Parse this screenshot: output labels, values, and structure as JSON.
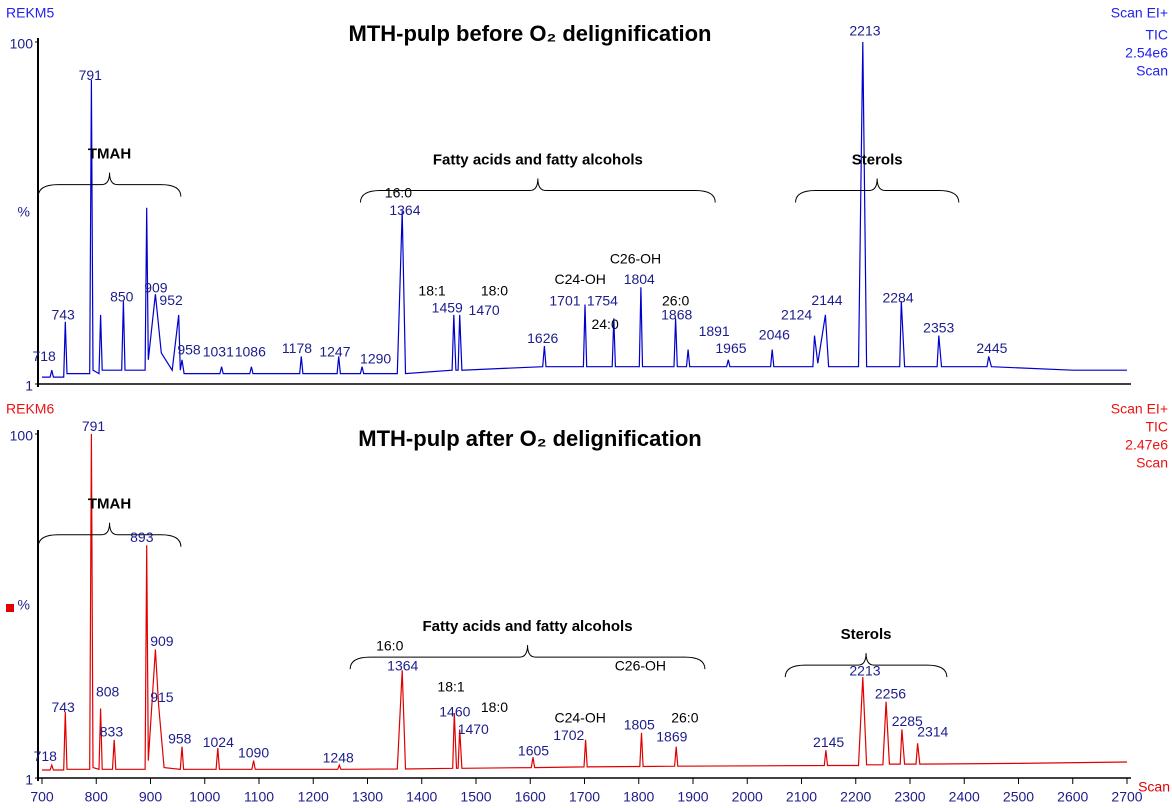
{
  "chart_data": [
    {
      "type": "line",
      "title": "MTH-pulp before O₂ delignification",
      "run_label": "REKM5",
      "info": [
        "Scan EI+",
        "TIC",
        "2.54e6",
        "Scan"
      ],
      "color": "#0000cc",
      "xlim": [
        700,
        2700
      ],
      "ylim": [
        1,
        100
      ],
      "yticks": [
        1,
        100
      ],
      "ylabel": "%",
      "x": [
        700,
        715,
        718,
        721,
        740,
        743,
        746,
        788,
        791,
        794,
        805,
        808,
        811,
        847,
        850,
        853,
        890,
        893,
        896,
        909,
        920,
        940,
        952,
        955,
        958,
        962,
        1028,
        1031,
        1034,
        1083,
        1086,
        1089,
        1175,
        1178,
        1181,
        1244,
        1247,
        1250,
        1287,
        1290,
        1293,
        1355,
        1364,
        1370,
        1456,
        1459,
        1463,
        1467,
        1470,
        1474,
        1623,
        1626,
        1629,
        1698,
        1701,
        1704,
        1751,
        1754,
        1757,
        1801,
        1804,
        1807,
        1865,
        1868,
        1871,
        1888,
        1891,
        1894,
        1962,
        1965,
        1968,
        2043,
        2046,
        2049,
        2121,
        2124,
        2130,
        2144,
        2150,
        2205,
        2213,
        2220,
        2281,
        2284,
        2290,
        2350,
        2353,
        2358,
        2442,
        2445,
        2450,
        2600,
        2700
      ],
      "values": [
        3,
        3,
        5,
        3,
        3,
        19,
        4,
        4,
        89,
        5,
        4,
        21,
        5,
        5,
        25,
        5,
        5,
        52,
        8,
        27,
        10,
        5,
        21,
        5,
        8,
        4,
        4,
        6,
        4,
        4,
        6,
        4,
        4,
        9,
        4,
        4,
        9,
        4,
        4,
        6,
        4,
        4,
        51,
        4,
        5,
        21,
        5,
        5,
        21,
        5,
        6,
        12,
        6,
        6,
        24,
        6,
        6,
        20,
        6,
        6,
        29,
        6,
        6,
        20,
        6,
        6,
        11,
        6,
        6,
        8,
        6,
        6,
        11,
        6,
        6,
        15,
        7,
        21,
        6,
        6,
        100,
        6,
        6,
        25,
        6,
        6,
        15,
        6,
        6,
        9,
        6,
        5,
        5
      ],
      "peak_labels": [
        {
          "text": "718",
          "x": 704,
          "y": 8.8
        },
        {
          "text": "743",
          "x": 739,
          "y": 20.7
        },
        {
          "text": "791",
          "x": 789,
          "y": 90
        },
        {
          "text": "850",
          "x": 847,
          "y": 26
        },
        {
          "text": "909",
          "x": 910,
          "y": 28.5
        },
        {
          "text": "952",
          "x": 938,
          "y": 25
        },
        {
          "text": "958",
          "x": 971,
          "y": 10.6
        },
        {
          "text": "1031",
          "x": 1025,
          "y": 10
        },
        {
          "text": "1086",
          "x": 1084,
          "y": 10
        },
        {
          "text": "1178",
          "x": 1170,
          "y": 11
        },
        {
          "text": "1247",
          "x": 1240,
          "y": 10
        },
        {
          "text": "1290",
          "x": 1315,
          "y": 8
        },
        {
          "text": "1364",
          "x": 1369,
          "y": 51
        },
        {
          "text": "1459",
          "x": 1447,
          "y": 22.7
        },
        {
          "text": "1470",
          "x": 1515,
          "y": 22
        },
        {
          "text": "1626",
          "x": 1623,
          "y": 14
        },
        {
          "text": "1701",
          "x": 1664,
          "y": 24.8
        },
        {
          "text": "1754",
          "x": 1733,
          "y": 24.8
        },
        {
          "text": "1804",
          "x": 1801,
          "y": 31
        },
        {
          "text": "1868",
          "x": 1870,
          "y": 20.7
        },
        {
          "text": "1891",
          "x": 1939,
          "y": 16
        },
        {
          "text": "1965",
          "x": 1970,
          "y": 11
        },
        {
          "text": "2046",
          "x": 2050,
          "y": 15
        },
        {
          "text": "2124",
          "x": 2091,
          "y": 20.7
        },
        {
          "text": "2144",
          "x": 2147,
          "y": 25
        },
        {
          "text": "2213",
          "x": 2217,
          "y": 103
        },
        {
          "text": "2284",
          "x": 2278,
          "y": 25.6
        },
        {
          "text": "2353",
          "x": 2353,
          "y": 17
        },
        {
          "text": "2445",
          "x": 2451,
          "y": 11
        }
      ],
      "compound_labels": [
        {
          "text": "16:0",
          "x": 1357,
          "y": 56
        },
        {
          "text": "18:1",
          "x": 1419,
          "y": 27.7
        },
        {
          "text": "18:0",
          "x": 1534,
          "y": 27.7
        },
        {
          "text": "C24-OH",
          "x": 1692,
          "y": 31
        },
        {
          "text": "24:0",
          "x": 1738,
          "y": 18
        },
        {
          "text": "C26-OH",
          "x": 1794,
          "y": 37
        },
        {
          "text": "26:0",
          "x": 1868,
          "y": 24.8
        }
      ],
      "groups": [
        {
          "label": "TMAH",
          "x0": 693,
          "x1": 956,
          "y": 58.7
        },
        {
          "label": "Fatty acids and fatty alcohols",
          "x0": 1287,
          "x1": 1941,
          "y": 57
        },
        {
          "label": "Sterols",
          "x0": 2089,
          "x1": 2390,
          "y": 57
        }
      ]
    },
    {
      "type": "line",
      "title": "MTH-pulp after O₂ delignification",
      "run_label": "REKM6",
      "info": [
        "Scan EI+",
        "TIC",
        "2.47e6",
        "Scan"
      ],
      "color": "#e00000",
      "xlim": [
        700,
        2700
      ],
      "ylim": [
        1,
        100
      ],
      "yticks": [
        1,
        100
      ],
      "ylabel": "%",
      "xticks": [
        700,
        800,
        900,
        1000,
        1100,
        1200,
        1300,
        1400,
        1500,
        1600,
        1700,
        1800,
        1900,
        2000,
        2100,
        2200,
        2300,
        2400,
        2500,
        2600,
        2700
      ],
      "xlabel": "Scan",
      "x": [
        700,
        715,
        718,
        721,
        740,
        743,
        746,
        788,
        791,
        794,
        805,
        808,
        811,
        830,
        833,
        836,
        890,
        893,
        896,
        909,
        915,
        925,
        955,
        958,
        961,
        1021,
        1024,
        1027,
        1087,
        1090,
        1093,
        1245,
        1248,
        1251,
        1355,
        1364,
        1370,
        1457,
        1460,
        1464,
        1467,
        1470,
        1474,
        1602,
        1605,
        1608,
        1699,
        1702,
        1705,
        1802,
        1805,
        1808,
        1866,
        1869,
        1872,
        2142,
        2145,
        2148,
        2205,
        2213,
        2220,
        2250,
        2256,
        2262,
        2282,
        2285,
        2290,
        2311,
        2314,
        2318,
        2500,
        2700
      ],
      "values": [
        3.3,
        3.3,
        4.7,
        3.3,
        3.3,
        20,
        3.5,
        3.5,
        100,
        4,
        3.5,
        21,
        3.5,
        3.5,
        12,
        3.5,
        3.5,
        68,
        6,
        38,
        22,
        4,
        3.5,
        10,
        3.5,
        3.5,
        9.6,
        3.5,
        3.5,
        6,
        3.5,
        3.5,
        4.7,
        3.5,
        3.6,
        32,
        3.6,
        3.8,
        19.7,
        3.8,
        3.8,
        15,
        3.8,
        4,
        7,
        4,
        4.2,
        12,
        4.2,
        4.3,
        14,
        4.3,
        4.4,
        10,
        4.4,
        4.6,
        9,
        4.6,
        4.6,
        30,
        4.8,
        4.8,
        23,
        5,
        5,
        15,
        5,
        5,
        11,
        5,
        5.2,
        5.6
      ],
      "peak_labels": [
        {
          "text": "718",
          "x": 706,
          "y": 7
        },
        {
          "text": "743",
          "x": 739,
          "y": 21
        },
        {
          "text": "791",
          "x": 795,
          "y": 102
        },
        {
          "text": "808",
          "x": 821,
          "y": 25.5
        },
        {
          "text": "833",
          "x": 828,
          "y": 14
        },
        {
          "text": "893",
          "x": 884,
          "y": 70
        },
        {
          "text": "909",
          "x": 921,
          "y": 40
        },
        {
          "text": "915",
          "x": 921,
          "y": 24
        },
        {
          "text": "958",
          "x": 954,
          "y": 12
        },
        {
          "text": "1024",
          "x": 1025,
          "y": 11
        },
        {
          "text": "1090",
          "x": 1090,
          "y": 8
        },
        {
          "text": "1248",
          "x": 1246,
          "y": 6.5
        },
        {
          "text": "1364",
          "x": 1365,
          "y": 33
        },
        {
          "text": "1460",
          "x": 1461,
          "y": 19.7
        },
        {
          "text": "1470",
          "x": 1495,
          "y": 14.8
        },
        {
          "text": "1605",
          "x": 1606,
          "y": 8.5
        },
        {
          "text": "1702",
          "x": 1671,
          "y": 13
        },
        {
          "text": "1805",
          "x": 1801,
          "y": 16
        },
        {
          "text": "1869",
          "x": 1861,
          "y": 12.5
        },
        {
          "text": "2145",
          "x": 2150,
          "y": 11
        },
        {
          "text": "2213",
          "x": 2217,
          "y": 31.5
        },
        {
          "text": "2256",
          "x": 2264,
          "y": 25
        },
        {
          "text": "2285",
          "x": 2295,
          "y": 17
        },
        {
          "text": "2314",
          "x": 2342,
          "y": 14
        }
      ],
      "compound_labels": [
        {
          "text": "16:0",
          "x": 1341,
          "y": 38.7
        },
        {
          "text": "18:1",
          "x": 1454,
          "y": 27
        },
        {
          "text": "18:0",
          "x": 1534,
          "y": 21
        },
        {
          "text": "C24-OH",
          "x": 1692,
          "y": 18
        },
        {
          "text": "C26-OH",
          "x": 1803,
          "y": 33
        },
        {
          "text": "26:0",
          "x": 1885,
          "y": 18
        }
      ],
      "groups": [
        {
          "label": "TMAH",
          "x0": 693,
          "x1": 956,
          "y": 71
        },
        {
          "label": "Fatty acids and fatty alcohols",
          "x0": 1268,
          "x1": 1922,
          "y": 35.8
        },
        {
          "label": "Sterols",
          "x0": 2070,
          "x1": 2368,
          "y": 33.5
        }
      ]
    }
  ]
}
